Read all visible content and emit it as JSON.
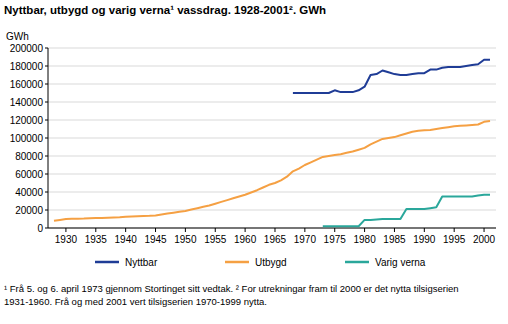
{
  "chart_data": {
    "type": "line",
    "title": "Nyttbar, utbygd og varig verna¹ vassdrag. 1928-2001². GWh",
    "y_label": "GWh",
    "x": [
      1928,
      1929,
      1930,
      1931,
      1932,
      1933,
      1934,
      1935,
      1936,
      1937,
      1938,
      1939,
      1940,
      1941,
      1942,
      1943,
      1944,
      1945,
      1946,
      1947,
      1948,
      1949,
      1950,
      1951,
      1952,
      1953,
      1954,
      1955,
      1956,
      1957,
      1958,
      1959,
      1960,
      1961,
      1962,
      1963,
      1964,
      1965,
      1966,
      1967,
      1968,
      1969,
      1970,
      1971,
      1972,
      1973,
      1974,
      1975,
      1976,
      1977,
      1978,
      1979,
      1980,
      1981,
      1982,
      1983,
      1984,
      1985,
      1986,
      1987,
      1988,
      1989,
      1990,
      1991,
      1992,
      1993,
      1994,
      1995,
      1996,
      1997,
      1998,
      1999,
      2000,
      2001
    ],
    "series": [
      {
        "name": "Nyttbar",
        "color": "#1f3c96",
        "values": [
          null,
          null,
          null,
          null,
          null,
          null,
          null,
          null,
          null,
          null,
          null,
          null,
          null,
          null,
          null,
          null,
          null,
          null,
          null,
          null,
          null,
          null,
          null,
          null,
          null,
          null,
          null,
          null,
          null,
          null,
          null,
          null,
          null,
          null,
          null,
          null,
          null,
          null,
          null,
          null,
          150000,
          150000,
          150000,
          150000,
          150000,
          150000,
          150000,
          153000,
          151000,
          151000,
          151000,
          153000,
          157000,
          170000,
          171000,
          175000,
          173000,
          171000,
          170000,
          170000,
          171000,
          172000,
          172000,
          176000,
          176000,
          178000,
          179000,
          179000,
          179000,
          180000,
          181000,
          182000,
          187000,
          187000
        ]
      },
      {
        "name": "Utbygd",
        "color": "#f5a043",
        "values": [
          8000,
          9000,
          10000,
          10200,
          10400,
          10500,
          10800,
          11000,
          11200,
          11500,
          11800,
          12000,
          12500,
          12800,
          13000,
          13200,
          13500,
          14000,
          15000,
          16000,
          17000,
          18000,
          19000,
          20500,
          22000,
          23500,
          25000,
          27000,
          29000,
          31000,
          33000,
          35000,
          37000,
          39500,
          42000,
          45000,
          48000,
          50000,
          53000,
          57000,
          63000,
          66000,
          70000,
          73000,
          76000,
          79000,
          80000,
          81000,
          82000,
          83500,
          85000,
          87000,
          89000,
          93000,
          96000,
          99000,
          100000,
          101000,
          103000,
          105000,
          107000,
          108000,
          108500,
          109000,
          110000,
          111000,
          112000,
          113000,
          113500,
          114000,
          114500,
          115000,
          118000,
          119000
        ]
      },
      {
        "name": "Varig verna",
        "color": "#2aa79b",
        "values": [
          null,
          null,
          null,
          null,
          null,
          null,
          null,
          null,
          null,
          null,
          null,
          null,
          null,
          null,
          null,
          null,
          null,
          null,
          null,
          null,
          null,
          null,
          null,
          null,
          null,
          null,
          null,
          null,
          null,
          null,
          null,
          null,
          null,
          null,
          null,
          null,
          null,
          null,
          null,
          null,
          null,
          null,
          null,
          null,
          null,
          2000,
          2000,
          2000,
          2000,
          2000,
          2000,
          2000,
          9000,
          9000,
          9500,
          10000,
          10000,
          10000,
          10000,
          21000,
          21000,
          21000,
          21000,
          22000,
          23000,
          35000,
          35000,
          35000,
          35000,
          35000,
          35000,
          36000,
          37000,
          37000
        ]
      }
    ],
    "xlim": [
      1927,
      2002
    ],
    "xticks": [
      1930,
      1935,
      1940,
      1945,
      1950,
      1955,
      1960,
      1965,
      1970,
      1975,
      1980,
      1985,
      1990,
      1995,
      2000
    ],
    "ylim": [
      0,
      200000
    ],
    "yticks": [
      0,
      20000,
      40000,
      60000,
      80000,
      100000,
      120000,
      140000,
      160000,
      180000,
      200000
    ],
    "grid": true,
    "legend": "bottom",
    "footnotes": [
      "¹ Frå 5. og 6. april 1973 gjennom Stortinget sitt vedtak.  ² For utrekningar fram til 2000 er det nytta tilsigserien",
      "1931-1960.  Frå og med 2001 vert tilsigserien 1970-1999 nytta."
    ]
  }
}
